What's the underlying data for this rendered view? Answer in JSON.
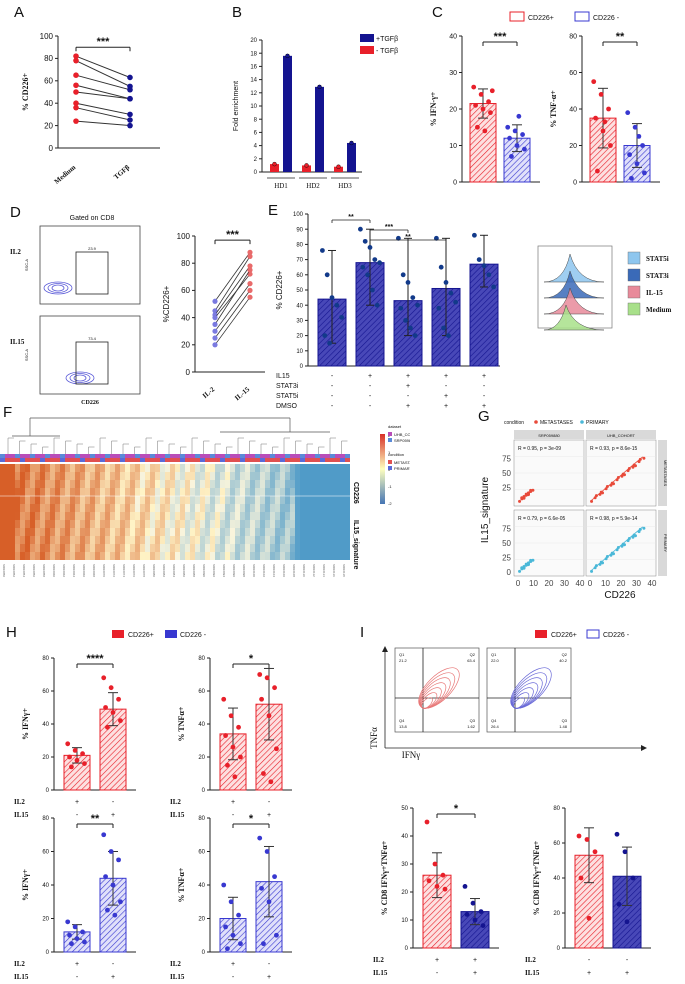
{
  "figure_labels": [
    "A",
    "B",
    "C",
    "D",
    "E",
    "F",
    "G",
    "H",
    "I"
  ],
  "colors": {
    "red": "#e8202a",
    "blue": "#3838d0",
    "navy": "#141490",
    "lightred": "#f2a9a9",
    "lightblue": "#a9a9f2",
    "heat_hi": "#d73027",
    "heat_lo": "#4575b4"
  },
  "chart_data": [
    {
      "id": "A",
      "type": "scatter",
      "ylabel": "% CD226+",
      "ylim": [
        0,
        100
      ],
      "yticks": [
        "0",
        "20",
        "40",
        "60",
        "80",
        "100"
      ],
      "categories": [
        "Medium",
        "TGFβ"
      ],
      "pairs": [
        [
          82,
          63
        ],
        [
          78,
          55
        ],
        [
          65,
          52
        ],
        [
          56,
          44
        ],
        [
          50,
          44
        ],
        [
          40,
          30
        ],
        [
          36,
          25
        ],
        [
          24,
          20
        ]
      ],
      "significance": "***"
    },
    {
      "id": "B",
      "type": "bar",
      "ylabel": "Fold enrichment",
      "ylim": [
        0,
        20
      ],
      "yticks": [
        "0",
        "2",
        "4",
        "6",
        "8",
        "10",
        "12",
        "14",
        "16",
        "18",
        "20"
      ],
      "categories": [
        "HD1",
        "HD2",
        "HD3"
      ],
      "series": [
        {
          "name": "- TGFβ",
          "values": [
            1.2,
            1.0,
            0.8
          ]
        },
        {
          "name": "+TGFβ",
          "values": [
            17.6,
            12.9,
            4.4
          ]
        }
      ],
      "legend": [
        "+TGFβ",
        "- TGFβ"
      ]
    },
    {
      "id": "C1",
      "type": "bar",
      "ylabel": "% IFN-γ+",
      "ylim": [
        0,
        40
      ],
      "yticks": [
        "0",
        "10",
        "20",
        "30",
        "40"
      ],
      "categories": [
        "CD226+",
        "CD226-"
      ],
      "values": [
        21.5,
        12
      ],
      "points": [
        [
          26,
          24,
          22,
          21,
          20,
          19,
          15,
          14,
          25
        ],
        [
          15,
          14,
          13,
          12,
          10,
          9,
          7,
          18
        ]
      ],
      "significance": "***",
      "legend": [
        "CD226+",
        "CD226 -"
      ]
    },
    {
      "id": "C2",
      "type": "bar",
      "ylabel": "% TNF-α+",
      "ylim": [
        0,
        80
      ],
      "yticks": [
        "0",
        "20",
        "40",
        "60",
        "80"
      ],
      "categories": [
        "CD226+",
        "CD226-"
      ],
      "values": [
        35,
        20
      ],
      "points": [
        [
          55,
          48,
          40,
          35,
          28,
          20,
          6,
          33
        ],
        [
          38,
          30,
          20,
          15,
          10,
          5,
          2,
          25
        ]
      ],
      "significance": "**"
    },
    {
      "id": "D",
      "type": "scatter",
      "title": "Gated on CD8",
      "ylabel": "%CD226+",
      "ylim": [
        0,
        100
      ],
      "yticks": [
        "0",
        "20",
        "40",
        "60",
        "80",
        "100"
      ],
      "categories": [
        "IL-2",
        "IL-15"
      ],
      "pairs": [
        [
          52,
          88
        ],
        [
          45,
          85
        ],
        [
          42,
          78
        ],
        [
          40,
          72
        ],
        [
          35,
          75
        ],
        [
          30,
          65
        ],
        [
          25,
          60
        ],
        [
          20,
          55
        ]
      ],
      "significance": "***",
      "flow": [
        {
          "label": "IL2",
          "gate": "23.9",
          "xaxis": "",
          "yaxis": "SSC-A"
        },
        {
          "label": "IL15",
          "gate": "73.4",
          "xaxis": "CD226",
          "yaxis": "SSC-A"
        }
      ]
    },
    {
      "id": "E",
      "type": "bar",
      "ylabel": "% CD226+",
      "ylim": [
        0,
        100
      ],
      "yticks": [
        "0",
        "10",
        "20",
        "30",
        "40",
        "50",
        "60",
        "70",
        "80",
        "90",
        "100"
      ],
      "values": [
        44,
        68,
        43,
        51,
        67
      ],
      "points": [
        [
          76,
          60,
          45,
          40,
          32,
          20,
          15
        ],
        [
          90,
          82,
          78,
          70,
          68,
          65,
          60,
          50,
          40
        ],
        [
          84,
          60,
          55,
          45,
          40,
          38,
          30,
          25,
          20
        ],
        [
          84,
          65,
          55,
          48,
          42,
          38,
          25,
          20
        ],
        [
          86,
          70,
          66,
          60,
          52
        ]
      ],
      "significance": [
        {
          "from": 0,
          "to": 1,
          "label": "**"
        },
        {
          "from": 1,
          "to": 2,
          "label": "***"
        },
        {
          "from": 1,
          "to": 3,
          "label": "**"
        }
      ],
      "conditions": [
        {
          "name": "IL15",
          "marks": [
            "-",
            "+",
            "+",
            "+",
            "+"
          ]
        },
        {
          "name": "STAT3i",
          "marks": [
            "-",
            "-",
            "+",
            "-",
            "-"
          ]
        },
        {
          "name": "STAT5i",
          "marks": [
            "-",
            "-",
            "-",
            "+",
            "-"
          ]
        },
        {
          "name": "DMSO",
          "marks": [
            "-",
            "-",
            "+",
            "+",
            "+"
          ]
        }
      ],
      "histogram_legend": [
        "STAT5i",
        "STAT3i",
        "IL-15",
        "Medium"
      ]
    },
    {
      "id": "F",
      "type": "heatmap",
      "row_labels": [
        "CD226",
        "IL15_signature"
      ],
      "legend_titles": [
        "dataset",
        "condition"
      ],
      "legend_items": [
        "UHB_COHORT",
        "SRP059880",
        "METASTASES",
        "PRIMARY"
      ],
      "scale": [
        "2",
        "1",
        "0",
        "-1",
        "-2"
      ]
    },
    {
      "id": "G",
      "type": "scatter",
      "legend_title": "condition",
      "legend": [
        "METASTASES",
        "PRIMARY"
      ],
      "facets_cols": [
        "SRP059880",
        "UHB_COHORT"
      ],
      "facets_rows": [
        "METASTASES",
        "PRIMARY"
      ],
      "xlabel": "CD226",
      "ylabel": "IL15_signature",
      "xticks": [
        "0",
        "10",
        "20",
        "30",
        "40"
      ],
      "yticks_top": [
        "25",
        "50",
        "75"
      ],
      "yticks_bottom": [
        "0",
        "25",
        "50",
        "75"
      ],
      "stats": [
        "R = 0.95, p = 3e-09",
        "R = 0.93, p = 8.6e-15",
        "R = 0.79, p = 6.6e-05",
        "R = 0.98, p = 5.9e-14"
      ]
    },
    {
      "id": "H1",
      "type": "bar",
      "ylabel": "% IFNγ+",
      "ylim": [
        0,
        80
      ],
      "yticks": [
        "0",
        "20",
        "40",
        "60",
        "80"
      ],
      "values": [
        21,
        49
      ],
      "points": [
        [
          28,
          24,
          22,
          20,
          18,
          16,
          14
        ],
        [
          68,
          62,
          55,
          50,
          47,
          42,
          38
        ]
      ],
      "significance": "****",
      "legend": [
        "CD226+",
        "CD226 -"
      ],
      "conditions": [
        {
          "name": "IL2",
          "marks": [
            "+",
            "-"
          ]
        },
        {
          "name": "IL15",
          "marks": [
            "-",
            "+"
          ]
        }
      ]
    },
    {
      "id": "H2",
      "type": "bar",
      "ylabel": "% TNFα+",
      "ylim": [
        0,
        80
      ],
      "yticks": [
        "0",
        "20",
        "40",
        "60",
        "80"
      ],
      "values": [
        34,
        52
      ],
      "points": [
        [
          55,
          45,
          38,
          33,
          26,
          20,
          15,
          8
        ],
        [
          70,
          68,
          62,
          55,
          45,
          25,
          10,
          5
        ]
      ],
      "significance": "*",
      "conditions": [
        {
          "name": "IL2",
          "marks": [
            "+",
            "-"
          ]
        },
        {
          "name": "IL15",
          "marks": [
            "-",
            "+"
          ]
        }
      ]
    },
    {
      "id": "H3",
      "type": "bar",
      "ylabel": "% IFNγ+",
      "ylim": [
        0,
        80
      ],
      "yticks": [
        "0",
        "20",
        "40",
        "60",
        "80"
      ],
      "values": [
        12,
        44
      ],
      "points": [
        [
          18,
          15,
          12,
          10,
          8,
          6,
          5
        ],
        [
          70,
          60,
          55,
          45,
          40,
          30,
          25,
          22
        ]
      ],
      "significance": "**",
      "conditions": [
        {
          "name": "IL2",
          "marks": [
            "+",
            "-"
          ]
        },
        {
          "name": "IL15",
          "marks": [
            "-",
            "+"
          ]
        }
      ]
    },
    {
      "id": "H4",
      "type": "bar",
      "ylabel": "% TNFα+",
      "ylim": [
        0,
        80
      ],
      "yticks": [
        "0",
        "20",
        "40",
        "60",
        "80"
      ],
      "values": [
        20,
        42
      ],
      "points": [
        [
          40,
          30,
          22,
          15,
          10,
          5,
          2
        ],
        [
          68,
          60,
          45,
          38,
          30,
          10,
          5
        ]
      ],
      "significance": "*",
      "conditions": [
        {
          "name": "IL2",
          "marks": [
            "+",
            "-"
          ]
        },
        {
          "name": "IL15",
          "marks": [
            "-",
            "+"
          ]
        }
      ]
    },
    {
      "id": "I1",
      "type": "bar",
      "ylabel": "% CD8 IFNγ+TNFα+",
      "ylim": [
        0,
        50
      ],
      "yticks": [
        "0",
        "10",
        "20",
        "30",
        "40",
        "50"
      ],
      "values": [
        26,
        13
      ],
      "points": [
        [
          45,
          30,
          26,
          24,
          22,
          21
        ],
        [
          22,
          16,
          13,
          12,
          10,
          8
        ]
      ],
      "significance": "*",
      "conditions": [
        {
          "name": "IL2",
          "marks": [
            "+",
            "+"
          ]
        },
        {
          "name": "IL15",
          "marks": [
            "-",
            "+"
          ]
        }
      ]
    },
    {
      "id": "I2",
      "type": "bar",
      "ylabel": "% CD8 IFNγ+TNFα+",
      "ylim": [
        0,
        80
      ],
      "yticks": [
        "0",
        "20",
        "40",
        "60",
        "80"
      ],
      "values": [
        53,
        41
      ],
      "points": [
        [
          64,
          62,
          55,
          40,
          17
        ],
        [
          65,
          55,
          40,
          25,
          15
        ]
      ],
      "conditions": [
        {
          "name": "IL2",
          "marks": [
            "-",
            "-"
          ]
        },
        {
          "name": "IL15",
          "marks": [
            "+",
            "+"
          ]
        }
      ]
    }
  ],
  "flow_I": {
    "legend": [
      "CD226+",
      "CD226 -"
    ],
    "xlabel": "IFNγ",
    "ylabel": "TNFα",
    "plots": [
      {
        "q1": "Q1",
        "q1v": "21.2",
        "q2": "Q2",
        "q2v": "63.4",
        "q3": "Q3",
        "q3v": "1.62",
        "q4": "Q4",
        "q4v": "13.8"
      },
      {
        "q1": "Q1",
        "q1v": "22.0",
        "q2": "Q2",
        "q2v": "40.2",
        "q3": "Q3",
        "q3v": "1.48",
        "q4": "Q4",
        "q4v": "26.4"
      }
    ]
  }
}
